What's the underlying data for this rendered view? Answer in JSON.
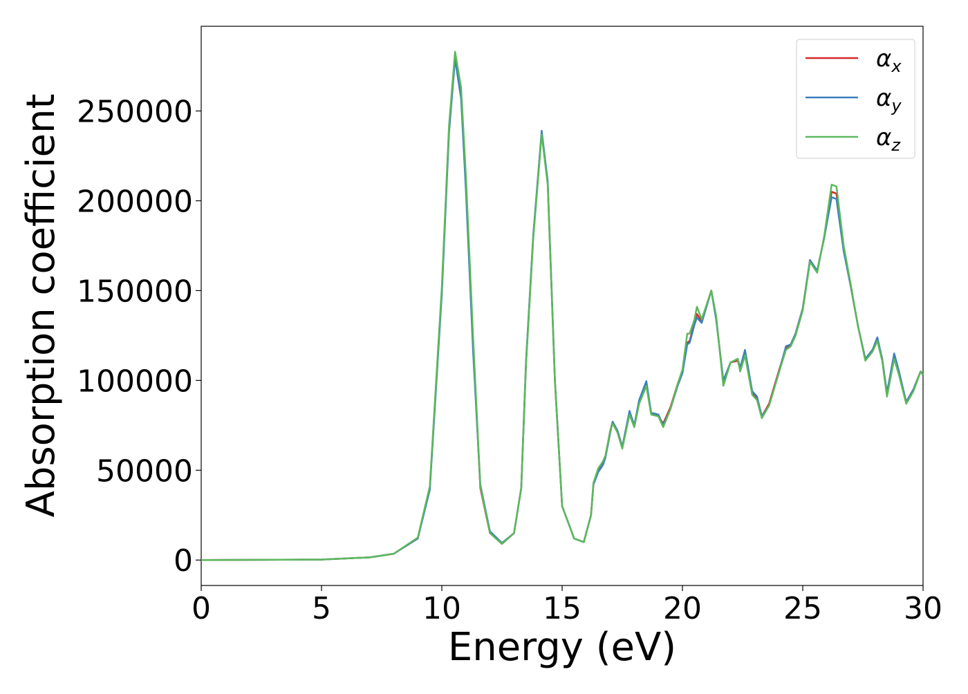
{
  "chart_data": {
    "type": "line",
    "xlabel": "Energy (eV)",
    "ylabel": "Absorption coefficient",
    "x": [
      0,
      5,
      7,
      8,
      9,
      9.5,
      10,
      10.3,
      10.55,
      10.8,
      11,
      11.3,
      11.6,
      12,
      12.5,
      13,
      13.3,
      13.5,
      13.8,
      14.15,
      14.4,
      14.7,
      15,
      15.5,
      15.9,
      16.2,
      16.3,
      16.5,
      16.7,
      16.8,
      17,
      17.1,
      17.3,
      17.5,
      17.8,
      18,
      18.2,
      18.5,
      18.7,
      19,
      19.2,
      19.5,
      19.8,
      20,
      20.2,
      20.3,
      20.5,
      20.6,
      20.8,
      21.2,
      21.4,
      21.7,
      22,
      22.3,
      22.4,
      22.6,
      22.9,
      23.1,
      23.3,
      23.6,
      24,
      24.3,
      24.5,
      24.7,
      25,
      25.3,
      25.6,
      25.9,
      26.2,
      26.4,
      26.7,
      27,
      27.3,
      27.6,
      27.9,
      28.1,
      28.3,
      28.5,
      28.8,
      29,
      29.3,
      29.6,
      29.9,
      30
    ],
    "series": [
      {
        "name": "αx",
        "color": "#d62728",
        "values": [
          0,
          300,
          1500,
          3500,
          12000,
          40000,
          150000,
          240000,
          280000,
          260000,
          210000,
          120000,
          40000,
          15000,
          9000,
          15000,
          40000,
          110000,
          180000,
          238000,
          210000,
          100000,
          30000,
          12000,
          10000,
          25000,
          42000,
          50000,
          55000,
          58000,
          72000,
          77000,
          72000,
          63000,
          82000,
          75000,
          88000,
          98000,
          82000,
          80000,
          76000,
          85000,
          98000,
          105000,
          121000,
          122000,
          132000,
          137000,
          133000,
          150000,
          135000,
          99000,
          110000,
          111000,
          106000,
          116000,
          93000,
          90000,
          80000,
          87000,
          105000,
          118000,
          120000,
          126000,
          140000,
          167000,
          161000,
          180000,
          205000,
          204000,
          173000,
          152000,
          130000,
          112000,
          117000,
          123000,
          112000,
          93000,
          114000,
          104000,
          88000,
          95000,
          105000,
          103000
        ]
      },
      {
        "name": "αy",
        "color": "#3a7fbf",
        "values": [
          0,
          300,
          1500,
          3500,
          12000,
          39000,
          148000,
          238000,
          279000,
          257000,
          206000,
          116000,
          42000,
          16000,
          9500,
          15000,
          40000,
          111000,
          181000,
          239000,
          211000,
          100000,
          30000,
          12000,
          10000,
          25000,
          42000,
          49000,
          53000,
          57000,
          71000,
          77000,
          72000,
          63000,
          83000,
          75000,
          89000,
          99600,
          82000,
          81000,
          75000,
          84000,
          97000,
          104000,
          120000,
          121000,
          131000,
          135000,
          132000,
          150000,
          134000,
          100000,
          110000,
          112000,
          107000,
          117000,
          94000,
          91000,
          80000,
          86000,
          104000,
          119000,
          120000,
          126000,
          140000,
          167000,
          161000,
          180000,
          202000,
          201000,
          172000,
          152000,
          130000,
          112000,
          117000,
          124000,
          112000,
          93000,
          115000,
          105000,
          88000,
          95000,
          105000,
          103000
        ]
      },
      {
        "name": "αz",
        "color": "#5cb85c",
        "values": [
          0,
          300,
          1500,
          3500,
          12500,
          41000,
          152000,
          242000,
          283000,
          263000,
          214000,
          124000,
          41000,
          15000,
          9000,
          15000,
          40000,
          109000,
          179000,
          237000,
          209000,
          99000,
          30000,
          12000,
          10000,
          25000,
          43000,
          51000,
          55000,
          58000,
          72000,
          76000,
          71000,
          62000,
          81000,
          74000,
          87000,
          97000,
          81000,
          80000,
          74000,
          84000,
          98000,
          106000,
          126000,
          126000,
          134000,
          141000,
          134000,
          150000,
          136000,
          97000,
          110000,
          112000,
          105000,
          114000,
          92000,
          89000,
          79000,
          86000,
          104000,
          117000,
          119000,
          125000,
          139000,
          166000,
          160000,
          181000,
          209000,
          208000,
          175000,
          153000,
          130000,
          111000,
          116000,
          122000,
          111000,
          91000,
          112000,
          103000,
          87000,
          94000,
          105000,
          103000
        ]
      }
    ],
    "xlim": [
      0,
      30
    ],
    "xticks": [
      0,
      5,
      10,
      15,
      20,
      25,
      30
    ],
    "ylim": [
      -14150,
      297150
    ],
    "yticks": [
      0,
      50000,
      100000,
      150000,
      200000,
      250000
    ],
    "legend": "upper right"
  }
}
